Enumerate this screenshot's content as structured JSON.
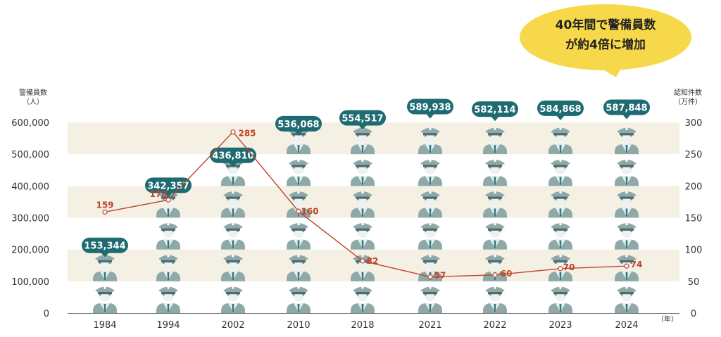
{
  "chart_data": {
    "type": "bar",
    "title": "",
    "categories": [
      "1984",
      "1994",
      "2002",
      "2010",
      "2018",
      "2021",
      "2022",
      "2023",
      "2024"
    ],
    "series": [
      {
        "name": "警備員数",
        "axis": "left",
        "unit": "人",
        "values": [
          153344,
          342357,
          436810,
          536068,
          554517,
          589938,
          582114,
          584868,
          587848
        ],
        "labels": [
          "153,344",
          "342,357",
          "436,810",
          "536,068",
          "554,517",
          "589,938",
          "582,114",
          "584,868",
          "587,848"
        ]
      },
      {
        "name": "認知件数",
        "axis": "right",
        "unit": "万件",
        "values": [
          159,
          178,
          285,
          160,
          82,
          57,
          60,
          70,
          74
        ],
        "labels": [
          "159",
          "178",
          "285",
          "160",
          "82",
          "57",
          "60",
          "70",
          "74"
        ]
      }
    ],
    "ylim_left": [
      0,
      600000
    ],
    "ylim_right": [
      0,
      300
    ],
    "y_left_ticks": [
      "0",
      "100,000",
      "200,000",
      "300,000",
      "400,000",
      "500,000",
      "600,000"
    ],
    "y_right_ticks": [
      "0",
      "50",
      "100",
      "150",
      "200",
      "250",
      "300"
    ],
    "ylabel_left": "警備員数",
    "ylabel_left_unit": "（人）",
    "ylabel_right": "認知件数",
    "ylabel_right_unit": "（万件）",
    "xlabel_unit": "（年）",
    "annotation_line1": "40年間で警備員数",
    "annotation_line2": "が約4倍に増加",
    "colors": {
      "guard": "#8fa9a8",
      "guard_dark": "#4d6c6c",
      "badge": "#1f6b72",
      "line": "#c0432a",
      "band": "#f4f1e4",
      "callout": "#f6d84a"
    }
  }
}
